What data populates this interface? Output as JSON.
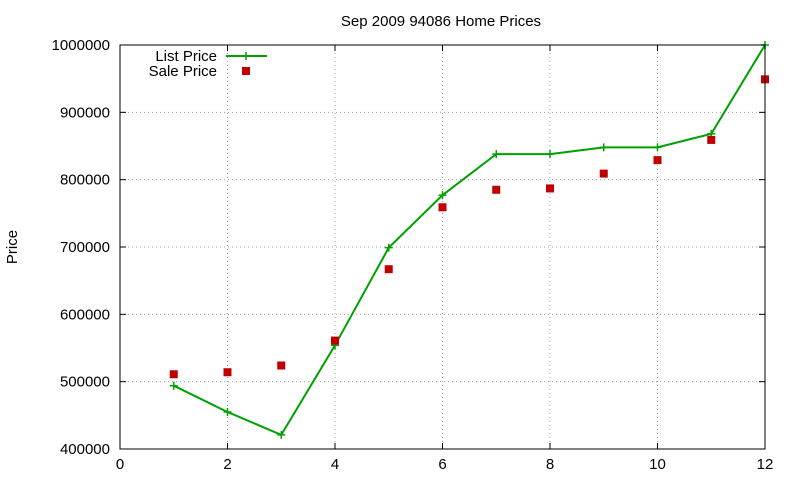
{
  "chart_data": {
    "type": "line",
    "title": "Sep 2009 94086 Home Prices",
    "xlabel": "",
    "ylabel": "Price",
    "xlim": [
      0,
      12
    ],
    "ylim": [
      400000,
      1000000
    ],
    "xticks": [
      "0",
      "2",
      "4",
      "6",
      "8",
      "10",
      "12"
    ],
    "yticks": [
      "400000",
      "500000",
      "600000",
      "700000",
      "800000",
      "900000",
      "1000000"
    ],
    "grid": true,
    "legend_position": "top-left",
    "series": [
      {
        "name": "List Price",
        "style": "line-points",
        "marker": "plus",
        "color": "#00a000",
        "x": [
          1,
          2,
          3,
          4,
          5,
          6,
          7,
          8,
          9,
          10,
          11,
          12
        ],
        "y": [
          494000,
          455000,
          421000,
          554000,
          699000,
          777000,
          838000,
          838000,
          848000,
          848000,
          868000,
          1000000
        ]
      },
      {
        "name": "Sale Price",
        "style": "points",
        "marker": "square",
        "color": "#c00000",
        "x": [
          1,
          2,
          3,
          4,
          5,
          6,
          7,
          8,
          9,
          10,
          11,
          12
        ],
        "y": [
          511000,
          514000,
          524000,
          561000,
          667000,
          759000,
          785000,
          787000,
          809000,
          829000,
          859000,
          949000
        ]
      }
    ]
  }
}
